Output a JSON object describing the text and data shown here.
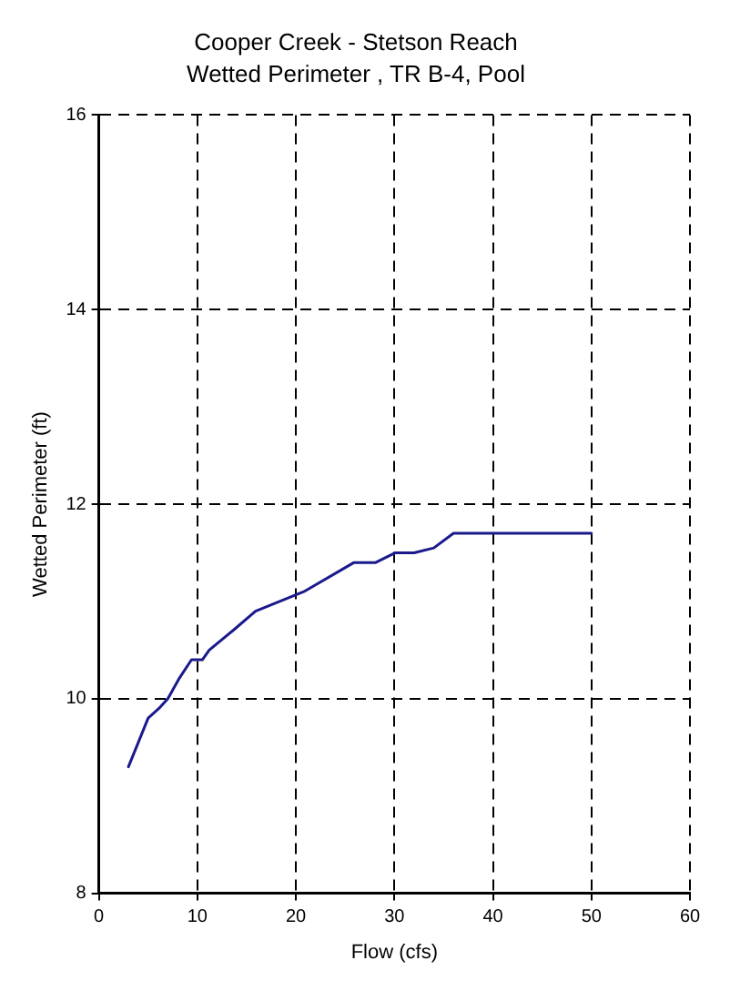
{
  "chart_data": {
    "type": "line",
    "title": "Cooper Creek - Stetson Reach",
    "subtitle": "Wetted Perimeter , TR B-4, Pool",
    "xlabel": "Flow (cfs)",
    "ylabel": "Wetted Perimeter (ft)",
    "series": [
      {
        "color": "#1a1a8c",
        "x": [
          3,
          5,
          6.1,
          7,
          8.1,
          9.4,
          10.5,
          11.2,
          13.6,
          15.9,
          20.8,
          25.9,
          28.1,
          30.1,
          32,
          34,
          36,
          50
        ],
        "values": [
          9.3,
          9.8,
          9.9,
          10,
          10.2,
          10.4,
          10.4,
          10.5,
          10.7,
          10.9,
          11.1,
          11.4,
          11.4,
          11.5,
          11.5,
          11.55,
          11.7,
          11.7
        ]
      }
    ],
    "xlim": [
      0,
      60
    ],
    "xticks": [
      0,
      10,
      20,
      30,
      40,
      50,
      60
    ],
    "ylim": [
      8,
      16
    ],
    "yticks": [
      8,
      10,
      12,
      14,
      16
    ],
    "grid": true,
    "legend": false,
    "marker": "none",
    "line_style": "solid"
  }
}
